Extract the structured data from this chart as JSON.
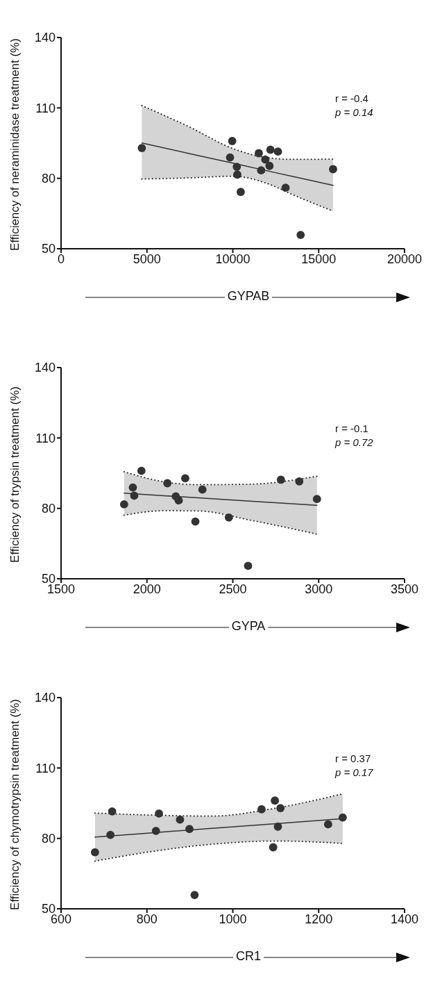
{
  "chart_data": [
    {
      "type": "scatter",
      "xlabel": "GYPAB",
      "ylabel": "Efficiency of neraminidase treatment (%)",
      "xlim": [
        0,
        20000
      ],
      "xticks": [
        0,
        5000,
        10000,
        15000,
        20000
      ],
      "ylim": [
        50,
        140
      ],
      "yticks": [
        50,
        80,
        110,
        140
      ],
      "annotations": [
        "r = -0.4",
        "p = 0.14"
      ],
      "series": [
        {
          "color": "#333333",
          "marker": "circle",
          "x": [
            4702,
            9966,
            9838,
            10234,
            10262,
            10460,
            11511,
            11894,
            12191,
            12630,
            12136,
            11651,
            13072,
            13949,
            15838
          ],
          "values": [
            92.9,
            95.9,
            88.9,
            84.9,
            81.6,
            74.2,
            90.7,
            88.0,
            92.2,
            91.4,
            85.3,
            83.4,
            76.0,
            55.9,
            83.9
          ]
        },
        {
          "type": "line",
          "color": "#333333",
          "marker": "none",
          "x": [
            4702,
            7500,
            10000,
            12000,
            13500,
            15838
          ],
          "values": [
            95.1,
            90.5,
            86.5,
            83.2,
            80.8,
            77.0
          ],
          "lower": [
            79.7,
            80.2,
            80.9,
            77.8,
            73.0,
            66.0
          ],
          "upper": [
            111.0,
            101.8,
            92.7,
            88.8,
            88.1,
            88.2
          ]
        },
        {
          "type": "line",
          "color": "#222222",
          "marker": "none",
          "line_style": "dotted",
          "x": [
            4702,
            7500,
            10000,
            12000,
            13500,
            15838
          ],
          "values": [
            79.7,
            80.2,
            80.9,
            77.8,
            73.0,
            66.0
          ]
        },
        {
          "type": "line",
          "color": "#222222",
          "marker": "none",
          "line_style": "dotted",
          "x": [
            4702,
            7500,
            10000,
            12000,
            13500,
            15838
          ],
          "values": [
            111.0,
            101.8,
            92.7,
            88.8,
            88.1,
            88.2
          ]
        }
      ]
    },
    {
      "type": "scatter",
      "xlabel": "GYPA",
      "ylabel": "Efficiency of trypsin treatment (%)",
      "xlim": [
        1500,
        3500
      ],
      "xticks": [
        1500,
        2000,
        2500,
        3000,
        3500
      ],
      "ylim": [
        50,
        140
      ],
      "yticks": [
        50,
        80,
        110,
        140
      ],
      "annotations": [
        "r = -0.1",
        "p = 0.72"
      ],
      "series": [
        {
          "color": "#333333",
          "marker": "circle",
          "x": [
            1867,
            1918,
            1926,
            1968,
            2119,
            2168,
            2185,
            2223,
            2323,
            2282,
            2477,
            2589,
            2780,
            2887,
            2990
          ],
          "values": [
            81.7,
            88.9,
            85.4,
            96.0,
            90.7,
            85.1,
            83.4,
            92.8,
            88.0,
            74.4,
            76.1,
            55.5,
            92.2,
            91.5,
            84.0
          ]
        },
        {
          "type": "line",
          "color": "#333333",
          "marker": "none",
          "x": [
            1867,
            2100,
            2300,
            2600,
            2990
          ],
          "values": [
            86.5,
            85.4,
            84.5,
            83.1,
            81.3
          ],
          "lower": [
            77.1,
            79.0,
            78.9,
            75.0,
            69.0
          ],
          "upper": [
            95.6,
            91.3,
            90.1,
            90.3,
            93.7
          ]
        },
        {
          "type": "line",
          "color": "#222222",
          "marker": "none",
          "line_style": "dotted",
          "x": [
            1867,
            2100,
            2300,
            2600,
            2990
          ],
          "values": [
            77.1,
            79.0,
            78.9,
            75.0,
            69.0
          ]
        },
        {
          "type": "line",
          "color": "#222222",
          "marker": "none",
          "line_style": "dotted",
          "x": [
            1867,
            2100,
            2300,
            2600,
            2990
          ],
          "values": [
            95.6,
            91.3,
            90.1,
            90.3,
            93.7
          ]
        }
      ]
    },
    {
      "type": "scatter",
      "xlabel": "CR1",
      "ylabel": "Efficiency of chymotrypsin treatment (%)",
      "xlim": [
        600,
        1400
      ],
      "xticks": [
        600,
        800,
        1000,
        1200,
        1400
      ],
      "ylim": [
        50,
        140
      ],
      "yticks": [
        50,
        80,
        110,
        140
      ],
      "annotations": [
        "r = 0.37",
        "p = 0.17"
      ],
      "series": [
        {
          "color": "#333333",
          "marker": "circle",
          "x": [
            679,
            719,
            715,
            821,
            828,
            877,
            899,
            911,
            1067,
            1098,
            1111,
            1105,
            1094,
            1222,
            1256
          ],
          "values": [
            74.1,
            91.5,
            81.5,
            83.2,
            90.6,
            88.0,
            84.0,
            55.9,
            92.4,
            96.1,
            92.9,
            85.0,
            76.2,
            86.0,
            88.9
          ]
        },
        {
          "type": "line",
          "color": "#333333",
          "marker": "none",
          "x": [
            679,
            800,
            950,
            1100,
            1256
          ],
          "values": [
            80.6,
            82.2,
            84.3,
            86.3,
            88.4
          ],
          "lower": [
            70.3,
            74.1,
            77.5,
            78.9,
            77.9
          ],
          "upper": [
            90.8,
            90.0,
            89.5,
            92.9,
            99.0
          ]
        },
        {
          "type": "line",
          "color": "#222222",
          "marker": "none",
          "line_style": "dotted",
          "x": [
            679,
            800,
            950,
            1100,
            1256
          ],
          "values": [
            70.3,
            74.1,
            77.5,
            78.9,
            77.9
          ]
        },
        {
          "type": "line",
          "color": "#222222",
          "marker": "none",
          "line_style": "dotted",
          "x": [
            679,
            800,
            950,
            1100,
            1256
          ],
          "values": [
            90.8,
            90.0,
            89.5,
            92.9,
            99.0
          ]
        }
      ]
    }
  ]
}
